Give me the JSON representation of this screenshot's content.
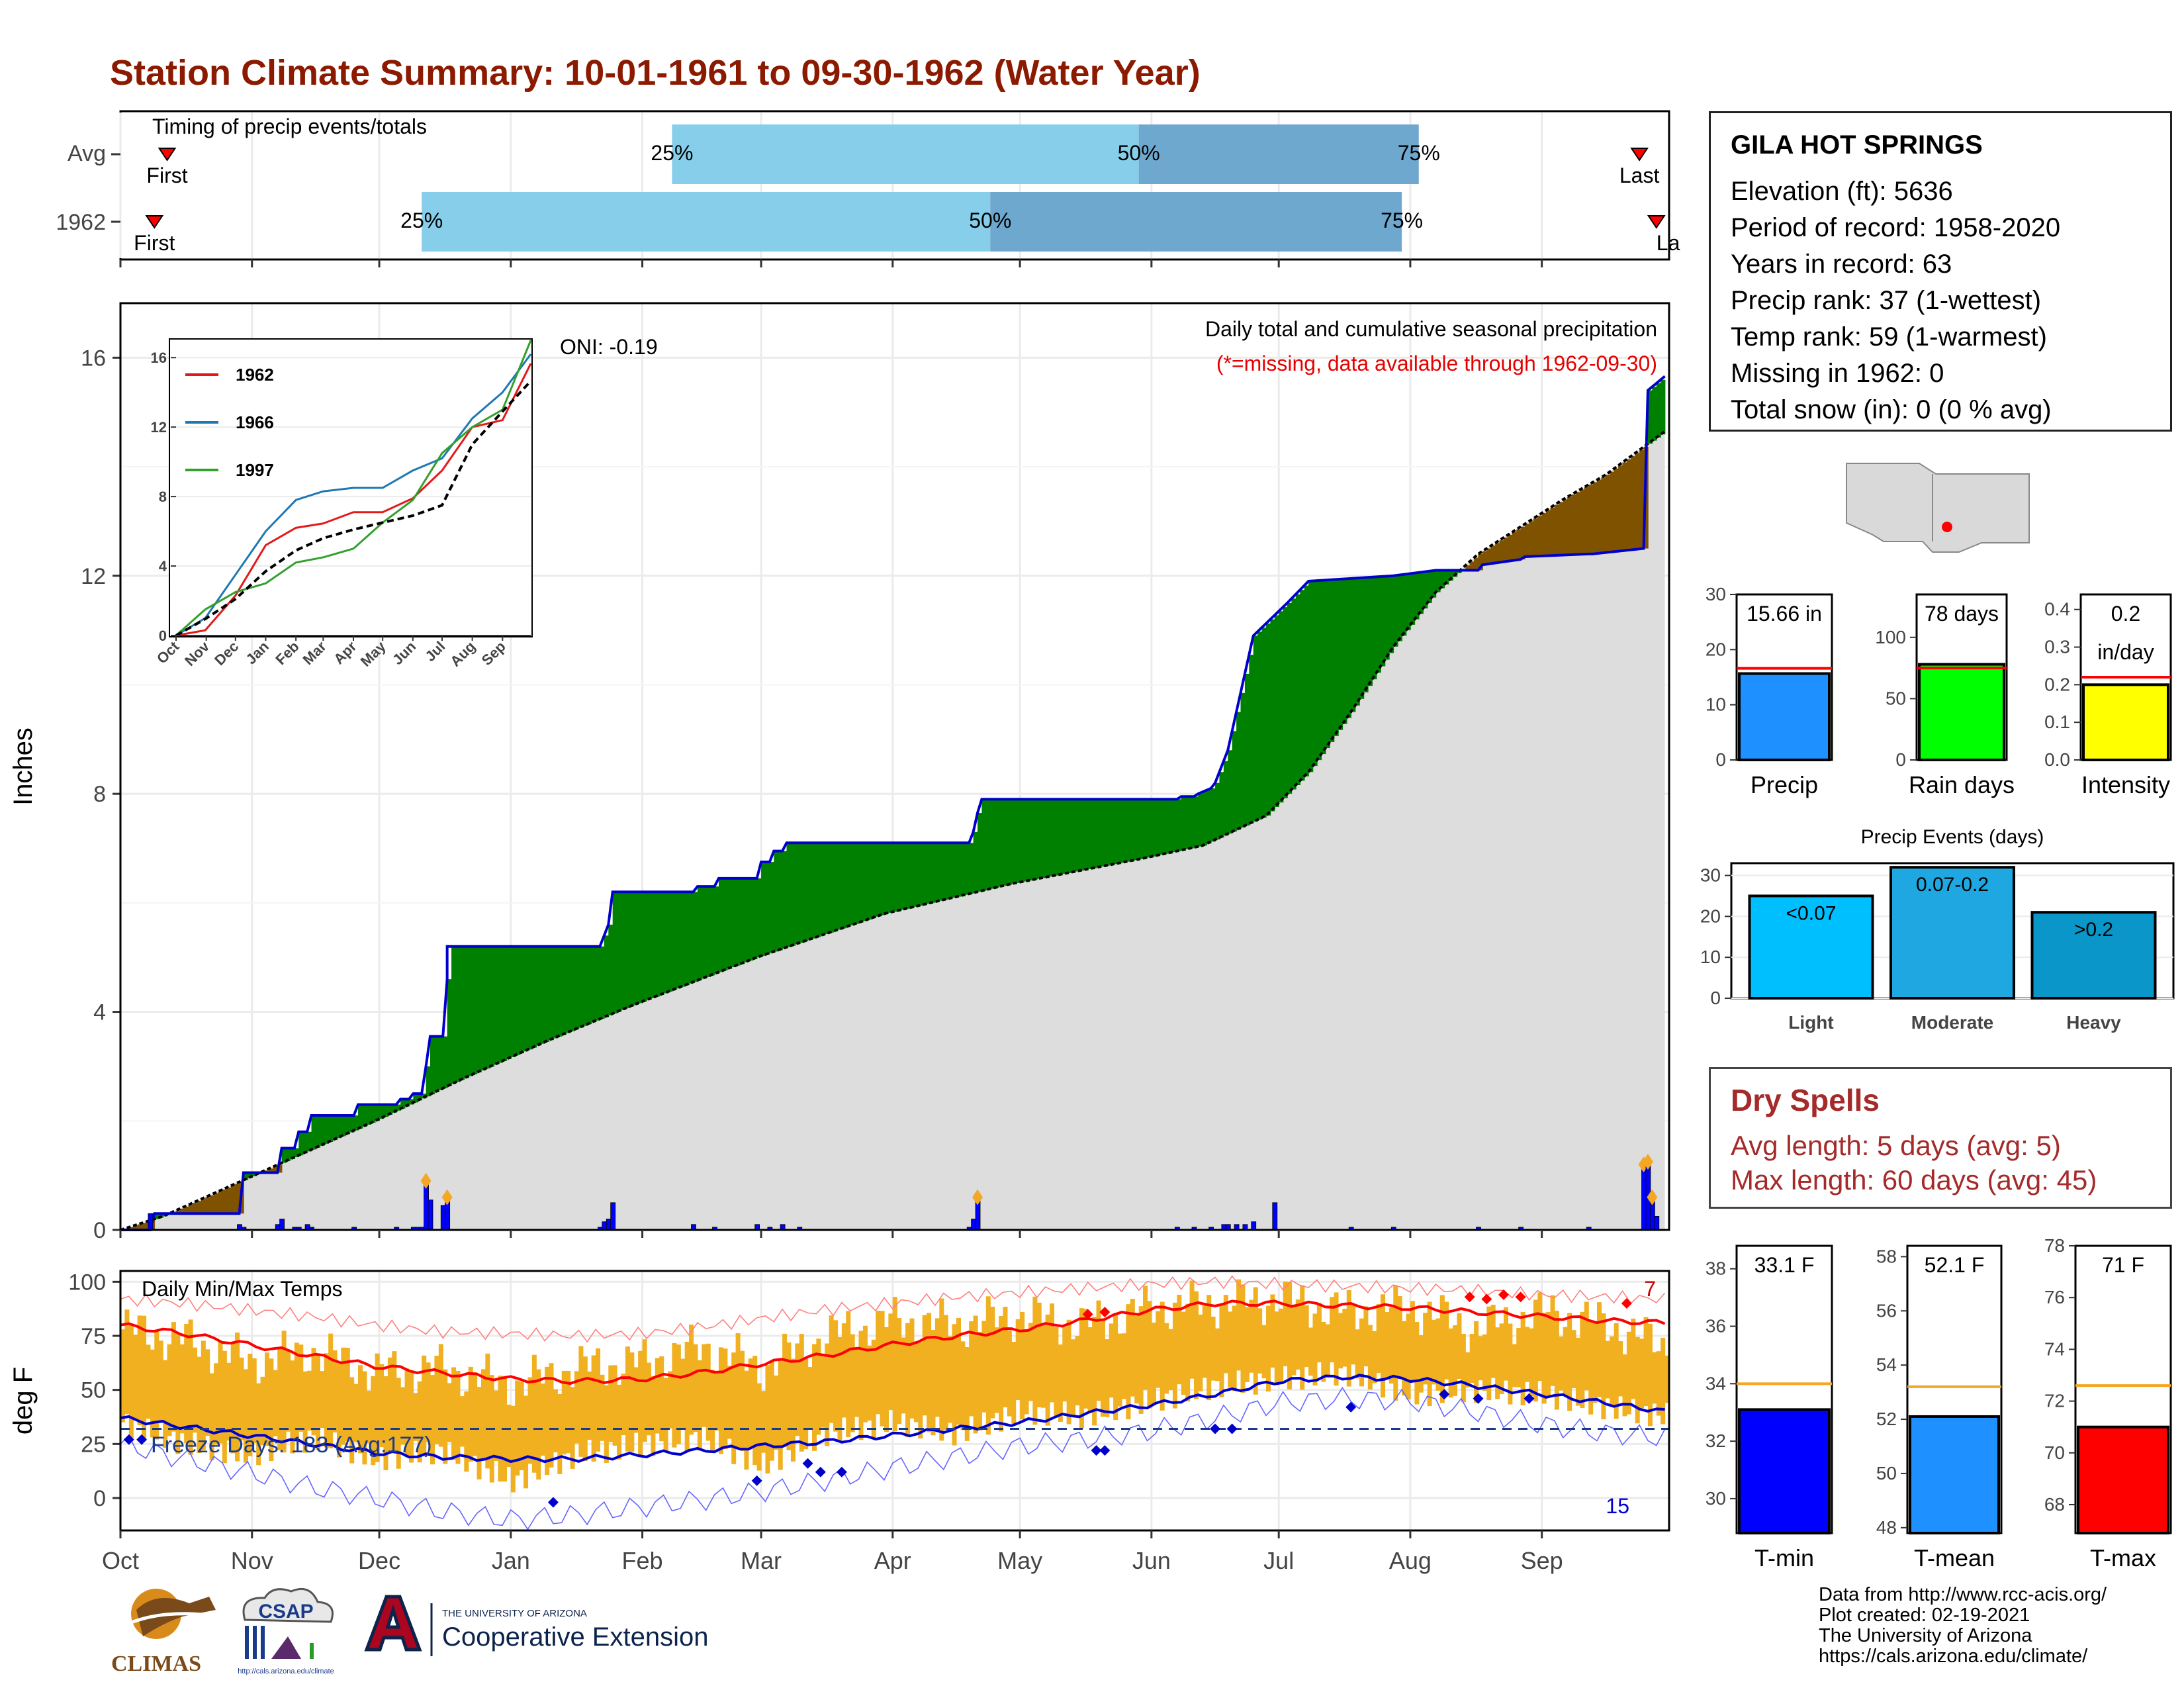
{
  "title": "Station Climate Summary: 10-01-1961 to 09-30-1962 (Water Year)",
  "timing": {
    "label": "Timing of precip events/totals",
    "rows": [
      {
        "name": "Avg",
        "first": "First",
        "last": "Last",
        "p25": "25%",
        "p50": "50%",
        "p75": "75%"
      },
      {
        "name": "1962",
        "first": "First",
        "last": "La",
        "p25": "25%",
        "p50": "50%",
        "p75": "75%"
      }
    ]
  },
  "station": {
    "name": "GILA HOT SPRINGS",
    "lines": [
      "Elevation (ft): 5636",
      "Period of record: 1958-2020",
      "Years in record: 63",
      "Precip rank: 37 (1-wettest)",
      "Temp rank: 59 (1-warmest)",
      "Missing in 1962: 0",
      "Total snow (in): 0 (0 % avg)"
    ]
  },
  "precip_panel": {
    "ylabel": "Inches",
    "oni": "ONI: -0.19",
    "note1": "Daily total and cumulative seasonal precipitation",
    "note2": "(*=missing, data available through 1962-09-30)"
  },
  "inset": {
    "legend": [
      "1962",
      "1966",
      "1997"
    ],
    "months": [
      "Oct",
      "Nov",
      "Dec",
      "Jan",
      "Feb",
      "Mar",
      "Apr",
      "May",
      "Jun",
      "Jul",
      "Aug",
      "Sep"
    ]
  },
  "temp_panel": {
    "ylabel": "deg F",
    "label": "Daily Min/Max Temps",
    "freeze": "Freeze Days: 183 (Avg:177)",
    "count_hot": "7",
    "count_cold": "15"
  },
  "months": [
    "Oct",
    "Nov",
    "Dec",
    "Jan",
    "Feb",
    "Mar",
    "Apr",
    "May",
    "Jun",
    "Jul",
    "Aug",
    "Sep"
  ],
  "mini_bars": {
    "precip": {
      "label": "Precip",
      "value_text": "15.66 in"
    },
    "rain_days": {
      "label": "Rain days",
      "value_text": "78 days"
    },
    "intensity": {
      "label": "Intensity",
      "value_text1": "0.2",
      "value_text2": "in/day"
    }
  },
  "events": {
    "title": "Precip Events (days)",
    "bars": [
      {
        "label": "Light",
        "value_text": "<0.07"
      },
      {
        "label": "Moderate",
        "value_text": "0.07-0.2"
      },
      {
        "label": "Heavy",
        "value_text": ">0.2"
      }
    ]
  },
  "dry_spells": {
    "title": "Dry Spells",
    "avg": "Avg length: 5 days (avg: 5)",
    "max": "Max length: 60 days (avg: 45)"
  },
  "temp_bars": {
    "tmin": {
      "label": "T-min",
      "value_text": "33.1 F"
    },
    "tmean": {
      "label": "T-mean",
      "value_text": "52.1 F"
    },
    "tmax": {
      "label": "T-max",
      "value_text": "71 F"
    }
  },
  "footer": [
    "Data from http://www.rcc-acis.org/",
    "Plot created: 02-19-2021",
    "The University of Arizona",
    "https://cals.arizona.edu/climate/"
  ],
  "logos": {
    "climas": "CLIMAS",
    "csap": "CSAP",
    "csap_url": "http://cals.arizona.edu/climate",
    "ua_small": "THE UNIVERSITY OF ARIZONA",
    "ua_big": "Cooperative Extension"
  },
  "colors": {
    "title": "#8b1a00",
    "wet": "#008000",
    "dry": "#7f5200",
    "avg_fill": "#dddddd",
    "precip_line": "#0000cc",
    "temp_bar": "#f0b020",
    "tmax_line": "#ff0000",
    "tmin_line": "#0000cc",
    "tmin_bar": "#0000ff",
    "tmean_bar": "#1e90ff",
    "tmax_bar": "#ff0000",
    "precip_bar": "#1e90ff",
    "raindays_bar": "#00ff00",
    "intensity_bar": "#ffff00"
  },
  "chart_data": [
    {
      "id": "timing",
      "type": "bar",
      "title": "Timing of precip events/totals",
      "x_axis": "day of water year (Oct 1 - Sep 30)",
      "rows": [
        {
          "name": "Avg",
          "first_day": 11,
          "p25_day": 130,
          "p50_day": 240,
          "p75_day": 306,
          "last_day": 358
        },
        {
          "name": "1962",
          "first_day": 8,
          "p25_day": 71,
          "p50_day": 205,
          "p75_day": 302,
          "last_day": 362
        }
      ]
    },
    {
      "id": "cumulative_precip",
      "type": "area",
      "title": "Daily total and cumulative seasonal precipitation",
      "ylabel": "Inches",
      "ylim": [
        0,
        17
      ],
      "x_unit": "day of water year",
      "series": [
        {
          "name": "1962 cumulative",
          "x": [
            0,
            7,
            8,
            28,
            29,
            37,
            38,
            41,
            42,
            44,
            45,
            55,
            56,
            60,
            61,
            65,
            66,
            68,
            69,
            70,
            71,
            72,
            73,
            76,
            77,
            77,
            78,
            113,
            114,
            115,
            116,
            135,
            136,
            140,
            141,
            150,
            151,
            153,
            154,
            156,
            157,
            160,
            161,
            200,
            201,
            202,
            203,
            249,
            250,
            253,
            254,
            257,
            258,
            260,
            261,
            263,
            265,
            267,
            275,
            280,
            290,
            300,
            310,
            320,
            321,
            330,
            331,
            346,
            347,
            359,
            360,
            364
          ],
          "values": [
            0,
            0,
            0.3,
            0.3,
            1.05,
            1.05,
            1.5,
            1.5,
            1.8,
            1.8,
            2.1,
            2.1,
            2.3,
            2.3,
            2.3,
            2.3,
            2.4,
            2.4,
            2.5,
            2.5,
            2.5,
            3.0,
            3.55,
            3.55,
            4.6,
            5.2,
            5.2,
            5.2,
            5.4,
            5.6,
            6.2,
            6.2,
            6.3,
            6.3,
            6.45,
            6.45,
            6.75,
            6.75,
            6.95,
            6.95,
            7.1,
            7.1,
            7.1,
            7.1,
            7.3,
            7.65,
            7.9,
            7.9,
            7.95,
            7.95,
            8.0,
            8.1,
            8.2,
            8.6,
            8.8,
            9.5,
            10.2,
            10.9,
            11.5,
            11.9,
            11.95,
            12.0,
            12.1,
            12.1,
            12.2,
            12.3,
            12.35,
            12.4,
            12.4,
            12.5,
            15.4,
            15.66
          ]
        },
        {
          "name": "Average cumulative",
          "x": [
            0,
            10,
            20,
            30,
            40,
            60,
            80,
            100,
            120,
            150,
            180,
            210,
            240,
            255,
            270,
            280,
            290,
            300,
            310,
            320,
            330,
            340,
            350,
            364
          ],
          "values": [
            0,
            0.25,
            0.6,
            0.95,
            1.3,
            2.0,
            2.75,
            3.45,
            4.1,
            5.0,
            5.8,
            6.35,
            6.8,
            7.05,
            7.6,
            8.4,
            9.5,
            10.7,
            11.7,
            12.4,
            12.9,
            13.4,
            13.85,
            14.65
          ]
        }
      ],
      "daily_bars": {
        "x": [
          7,
          28,
          29,
          37,
          38,
          41,
          42,
          44,
          45,
          55,
          65,
          69,
          70,
          71,
          72,
          73,
          76,
          77,
          113,
          114,
          115,
          116,
          135,
          140,
          150,
          153,
          156,
          160,
          200,
          201,
          202,
          249,
          253,
          257,
          260,
          261,
          263,
          265,
          267,
          272,
          290,
          300,
          320,
          330,
          346,
          359,
          360,
          361,
          362
        ],
        "values": [
          0.3,
          0.1,
          0.05,
          0.1,
          0.2,
          0.05,
          0.05,
          0.1,
          0.05,
          0.05,
          0.05,
          0.05,
          0.05,
          0.05,
          0.9,
          0.55,
          0.45,
          0.6,
          0.05,
          0.15,
          0.2,
          0.5,
          0.1,
          0.05,
          0.1,
          0.05,
          0.1,
          0.05,
          0.05,
          0.2,
          0.6,
          0.05,
          0.05,
          0.05,
          0.1,
          0.1,
          0.1,
          0.1,
          0.15,
          0.5,
          0.05,
          0.05,
          0.05,
          0.05,
          0.05,
          1.2,
          1.25,
          0.6,
          0.25
        ]
      },
      "annotations": [
        "ONI: -0.19",
        "(*=missing, data available through 1962-09-30)"
      ]
    },
    {
      "id": "inset_comparison",
      "type": "line",
      "ylim": [
        0,
        17
      ],
      "x": [
        0,
        30,
        61,
        92,
        123,
        151,
        182,
        212,
        243,
        273,
        304,
        335,
        364
      ],
      "series": [
        {
          "name": "1962",
          "values": [
            0,
            0.3,
            2.3,
            5.2,
            6.2,
            6.45,
            7.1,
            7.1,
            7.9,
            9.5,
            12.0,
            12.4,
            15.66
          ]
        },
        {
          "name": "1966",
          "values": [
            0,
            1.0,
            3.5,
            6.0,
            7.8,
            8.3,
            8.5,
            8.5,
            9.5,
            10.2,
            12.5,
            14.0,
            16.2
          ]
        },
        {
          "name": "1997",
          "values": [
            0,
            1.5,
            2.5,
            3.0,
            4.2,
            4.5,
            5.0,
            6.5,
            7.8,
            10.5,
            12.0,
            13.0,
            17.0
          ]
        },
        {
          "name": "Average",
          "values": [
            0,
            0.95,
            2.1,
            3.7,
            4.9,
            5.6,
            6.1,
            6.5,
            6.9,
            7.5,
            11.0,
            12.9,
            14.65
          ]
        }
      ]
    },
    {
      "id": "daily_temps",
      "type": "bar",
      "title": "Daily Min/Max Temps",
      "ylabel": "deg F",
      "ylim": [
        -15,
        105
      ],
      "x": [
        0,
        15,
        30,
        45,
        60,
        75,
        92,
        107,
        123,
        137,
        151,
        166,
        182,
        197,
        212,
        227,
        243,
        258,
        273,
        288,
        304,
        319,
        335,
        350,
        364
      ],
      "series": [
        {
          "name": "Normal Tmax",
          "values": [
            80,
            76,
            71,
            66,
            61,
            58,
            55,
            54,
            55,
            58,
            62,
            66,
            71,
            75,
            78,
            82,
            87,
            90,
            90,
            89,
            88,
            86,
            84,
            82,
            81
          ]
        },
        {
          "name": "Normal Tmin",
          "values": [
            37,
            33,
            29,
            25,
            21,
            19,
            18,
            18,
            20,
            22,
            24,
            26,
            29,
            32,
            35,
            39,
            43,
            48,
            54,
            56,
            55,
            52,
            48,
            44,
            40
          ]
        },
        {
          "name": "Record high",
          "values": [
            92,
            90,
            87,
            84,
            80,
            77,
            76,
            75,
            76,
            79,
            83,
            87,
            90,
            93,
            95,
            97,
            99,
            100,
            99,
            98,
            97,
            96,
            94,
            93,
            92
          ]
        },
        {
          "name": "Record low",
          "values": [
            25,
            18,
            12,
            5,
            0,
            -6,
            -10,
            -8,
            -4,
            -1,
            3,
            8,
            14,
            19,
            24,
            27,
            31,
            37,
            44,
            46,
            45,
            40,
            34,
            30,
            28
          ]
        },
        {
          "name": "Daily high",
          "values": [
            78,
            73,
            63,
            68,
            58,
            60,
            52,
            60,
            63,
            70,
            60,
            75,
            82,
            80,
            84,
            80,
            88,
            90,
            92,
            86,
            88,
            78,
            86,
            80,
            70
          ]
        },
        {
          "name": "Daily low",
          "values": [
            35,
            25,
            20,
            28,
            18,
            22,
            8,
            20,
            25,
            28,
            15,
            30,
            35,
            30,
            40,
            38,
            45,
            52,
            55,
            58,
            48,
            50,
            48,
            42,
            38
          ]
        }
      ],
      "reference_line": {
        "name": "Freezing",
        "value": 32
      },
      "annotations": [
        "Freeze Days: 183 (Avg:177)",
        "7",
        "15"
      ]
    },
    {
      "id": "precip_total",
      "type": "bar",
      "categories": [
        "Precip"
      ],
      "values": [
        15.66
      ],
      "average": 16.6,
      "ylim": [
        0,
        30
      ]
    },
    {
      "id": "rain_days",
      "type": "bar",
      "categories": [
        "Rain days"
      ],
      "values": [
        78
      ],
      "average": 75,
      "ylim": [
        0,
        135
      ]
    },
    {
      "id": "intensity",
      "type": "bar",
      "categories": [
        "Intensity"
      ],
      "values": [
        0.2
      ],
      "average": 0.22,
      "ylim": [
        0,
        0.44
      ]
    },
    {
      "id": "precip_events",
      "type": "bar",
      "title": "Precip Events (days)",
      "categories": [
        "Light",
        "Moderate",
        "Heavy"
      ],
      "values": [
        25,
        32,
        21
      ],
      "ylim": [
        0,
        33
      ]
    },
    {
      "id": "tmin",
      "type": "bar",
      "categories": [
        "T-min"
      ],
      "values": [
        33.1
      ],
      "average": 34.0,
      "ylim": [
        28.8,
        38.8
      ]
    },
    {
      "id": "tmean",
      "type": "bar",
      "categories": [
        "T-mean"
      ],
      "values": [
        52.1
      ],
      "average": 53.2,
      "ylim": [
        47.8,
        58.4
      ]
    },
    {
      "id": "tmax",
      "type": "bar",
      "categories": [
        "T-max"
      ],
      "values": [
        71.0
      ],
      "average": 72.6,
      "ylim": [
        66.9,
        78.0
      ]
    }
  ]
}
